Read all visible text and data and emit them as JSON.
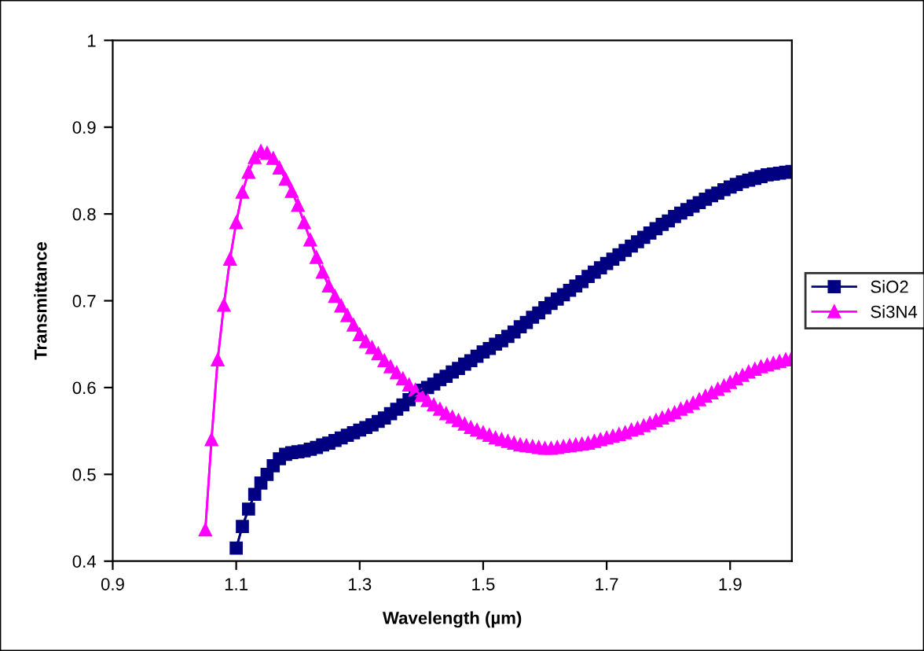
{
  "chart_data": {
    "type": "line",
    "xlabel": "Wavelength (µm)",
    "ylabel": "Transmittance",
    "xlim": [
      0.9,
      2.0
    ],
    "xticks": [
      0.9,
      1.1,
      1.3,
      1.5,
      1.7,
      1.9
    ],
    "ylim": [
      0.4,
      1
    ],
    "yticks": [
      0.4,
      0.5,
      0.6,
      0.7,
      0.8,
      0.9,
      1
    ],
    "grid": false,
    "legend": "right",
    "series": [
      {
        "name": "SiO2",
        "color": "#000080",
        "marker": "square",
        "x": [
          1.1,
          1.11,
          1.12,
          1.13,
          1.14,
          1.15,
          1.16,
          1.17,
          1.18,
          1.19,
          1.2,
          1.21,
          1.22,
          1.23,
          1.24,
          1.25,
          1.26,
          1.27,
          1.28,
          1.29,
          1.3,
          1.31,
          1.32,
          1.33,
          1.34,
          1.35,
          1.36,
          1.37,
          1.38,
          1.39,
          1.4,
          1.41,
          1.42,
          1.43,
          1.44,
          1.45,
          1.46,
          1.47,
          1.48,
          1.49,
          1.5,
          1.51,
          1.52,
          1.53,
          1.54,
          1.55,
          1.56,
          1.57,
          1.58,
          1.59,
          1.6,
          1.61,
          1.62,
          1.63,
          1.64,
          1.65,
          1.66,
          1.67,
          1.68,
          1.69,
          1.7,
          1.71,
          1.72,
          1.73,
          1.74,
          1.75,
          1.76,
          1.77,
          1.78,
          1.79,
          1.8,
          1.81,
          1.82,
          1.83,
          1.84,
          1.85,
          1.86,
          1.87,
          1.88,
          1.89,
          1.9,
          1.91,
          1.92,
          1.93,
          1.94,
          1.95,
          1.96,
          1.97,
          1.98,
          1.99,
          2.0
        ],
        "values": [
          0.415,
          0.44,
          0.46,
          0.477,
          0.49,
          0.5,
          0.51,
          0.518,
          0.523,
          0.525,
          0.526,
          0.527,
          0.529,
          0.531,
          0.534,
          0.536,
          0.539,
          0.542,
          0.545,
          0.548,
          0.551,
          0.554,
          0.557,
          0.561,
          0.565,
          0.57,
          0.575,
          0.58,
          0.586,
          0.592,
          0.597,
          0.6,
          0.604,
          0.609,
          0.613,
          0.618,
          0.622,
          0.627,
          0.631,
          0.636,
          0.641,
          0.645,
          0.65,
          0.654,
          0.659,
          0.664,
          0.67,
          0.675,
          0.681,
          0.686,
          0.692,
          0.697,
          0.702,
          0.707,
          0.712,
          0.717,
          0.722,
          0.728,
          0.733,
          0.738,
          0.743,
          0.748,
          0.753,
          0.758,
          0.763,
          0.768,
          0.773,
          0.778,
          0.783,
          0.788,
          0.792,
          0.797,
          0.801,
          0.805,
          0.809,
          0.813,
          0.817,
          0.821,
          0.824,
          0.828,
          0.831,
          0.834,
          0.837,
          0.839,
          0.841,
          0.843,
          0.845,
          0.846,
          0.847,
          0.848,
          0.849
        ]
      },
      {
        "name": "Si3N4",
        "color": "#ff00ff",
        "marker": "triangle",
        "x": [
          1.05,
          1.06,
          1.07,
          1.08,
          1.09,
          1.1,
          1.11,
          1.12,
          1.13,
          1.14,
          1.15,
          1.16,
          1.17,
          1.18,
          1.19,
          1.2,
          1.21,
          1.22,
          1.23,
          1.24,
          1.25,
          1.26,
          1.27,
          1.28,
          1.29,
          1.3,
          1.31,
          1.32,
          1.33,
          1.34,
          1.35,
          1.36,
          1.37,
          1.38,
          1.39,
          1.4,
          1.41,
          1.42,
          1.43,
          1.44,
          1.45,
          1.46,
          1.47,
          1.48,
          1.49,
          1.5,
          1.51,
          1.52,
          1.53,
          1.54,
          1.55,
          1.56,
          1.57,
          1.58,
          1.59,
          1.6,
          1.61,
          1.62,
          1.63,
          1.64,
          1.65,
          1.66,
          1.67,
          1.68,
          1.69,
          1.7,
          1.71,
          1.72,
          1.73,
          1.74,
          1.75,
          1.76,
          1.77,
          1.78,
          1.79,
          1.8,
          1.81,
          1.82,
          1.83,
          1.84,
          1.85,
          1.86,
          1.87,
          1.88,
          1.89,
          1.9,
          1.91,
          1.92,
          1.93,
          1.94,
          1.95,
          1.96,
          1.97,
          1.98,
          1.99,
          2.0
        ],
        "values": [
          0.436,
          0.54,
          0.632,
          0.695,
          0.748,
          0.79,
          0.825,
          0.848,
          0.865,
          0.872,
          0.87,
          0.864,
          0.853,
          0.84,
          0.826,
          0.81,
          0.79,
          0.77,
          0.75,
          0.733,
          0.717,
          0.705,
          0.694,
          0.683,
          0.672,
          0.661,
          0.653,
          0.646,
          0.639,
          0.631,
          0.624,
          0.617,
          0.61,
          0.603,
          0.597,
          0.591,
          0.585,
          0.58,
          0.575,
          0.57,
          0.566,
          0.562,
          0.558,
          0.554,
          0.551,
          0.548,
          0.545,
          0.542,
          0.54,
          0.538,
          0.536,
          0.534,
          0.533,
          0.532,
          0.531,
          0.53,
          0.53,
          0.531,
          0.532,
          0.533,
          0.534,
          0.535,
          0.536,
          0.538,
          0.54,
          0.542,
          0.544,
          0.546,
          0.548,
          0.551,
          0.553,
          0.556,
          0.559,
          0.562,
          0.565,
          0.568,
          0.571,
          0.575,
          0.578,
          0.582,
          0.586,
          0.59,
          0.594,
          0.598,
          0.602,
          0.606,
          0.61,
          0.614,
          0.618,
          0.621,
          0.624,
          0.626,
          0.628,
          0.63,
          0.632,
          0.634
        ]
      }
    ]
  }
}
